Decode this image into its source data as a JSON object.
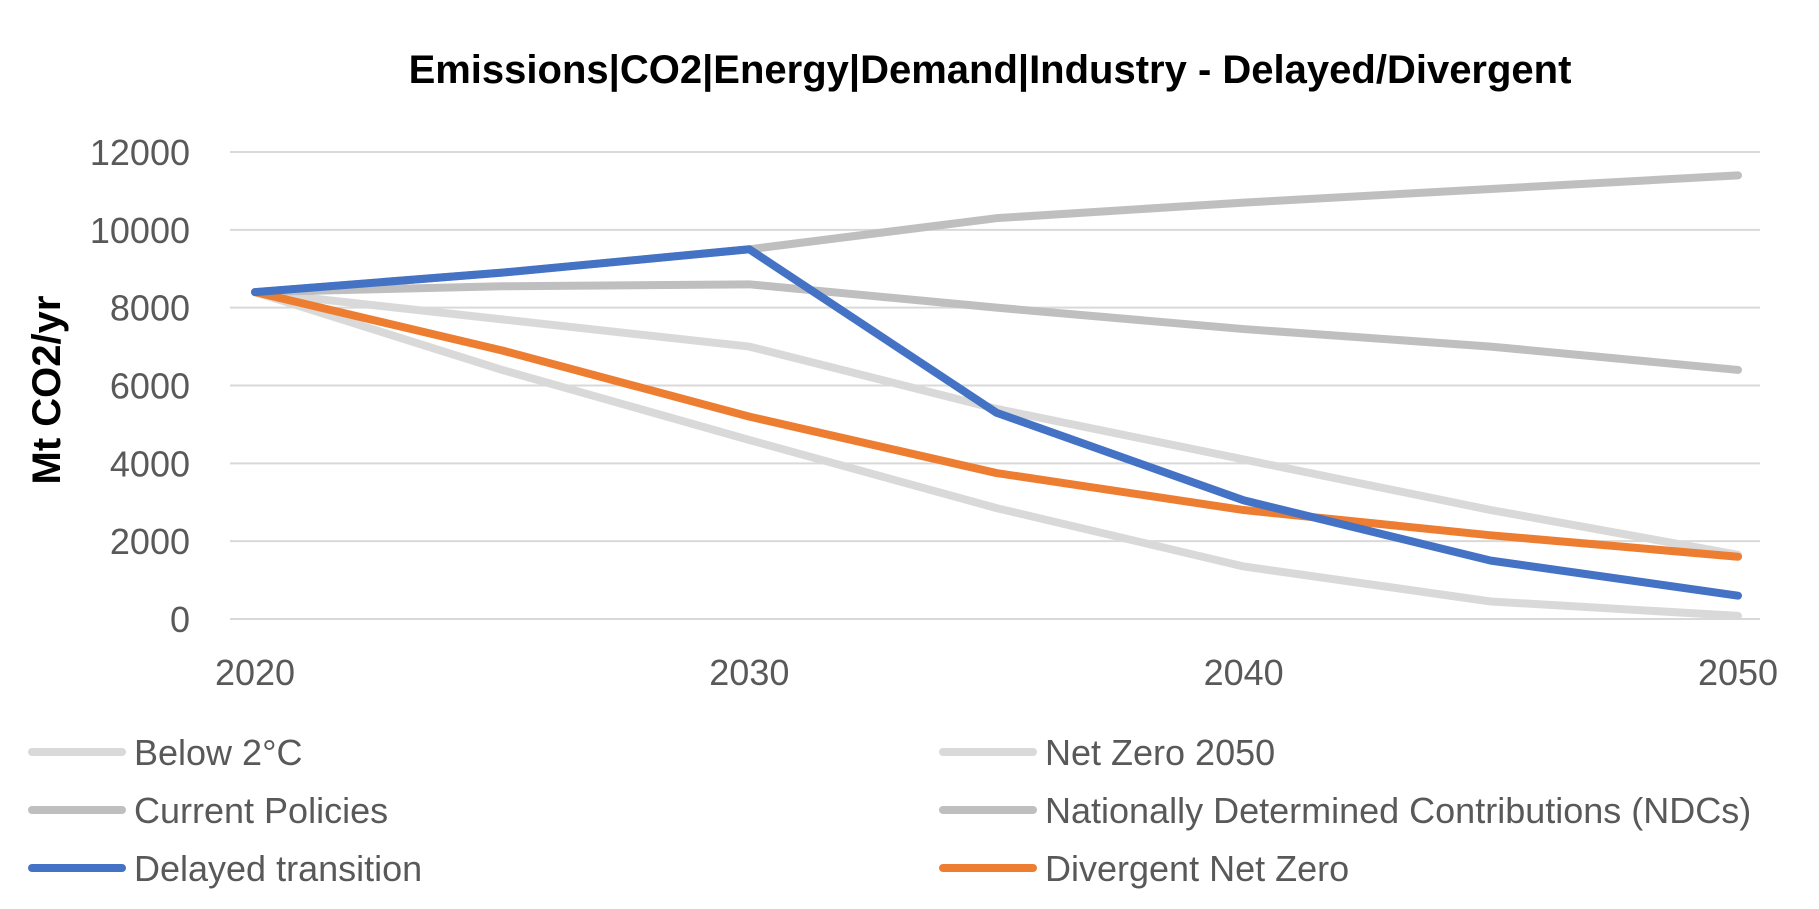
{
  "chart_data": {
    "type": "line",
    "title": "Emissions|CO2|Energy|Demand|Industry - Delayed/Divergent",
    "xlabel": "",
    "ylabel": "Mt CO2/yr",
    "x": [
      2020,
      2025,
      2030,
      2035,
      2040,
      2045,
      2050
    ],
    "x_ticks": [
      "2020",
      "2030",
      "2040",
      "2050"
    ],
    "y_ticks": [
      "0",
      "2000",
      "4000",
      "6000",
      "8000",
      "10000",
      "12000"
    ],
    "xlim": [
      2020,
      2050
    ],
    "ylim": [
      0,
      12000
    ],
    "grid": "horizontal",
    "legend_position": "bottom",
    "series": [
      {
        "name": "Below 2°C",
        "color": "#d9d9d9",
        "values": [
          8400,
          7700,
          7000,
          5400,
          4100,
          2800,
          1650
        ],
        "draw_order": 0
      },
      {
        "name": "Net Zero 2050",
        "color": "#d9d9d9",
        "values": [
          8400,
          6400,
          4600,
          2850,
          1350,
          450,
          80
        ],
        "draw_order": 1
      },
      {
        "name": "Current Policies",
        "color": "#bfbfbf",
        "values": [
          8400,
          8900,
          9500,
          10300,
          10700,
          11050,
          11400
        ],
        "draw_order": 2
      },
      {
        "name": "Nationally Determined Contributions (NDCs)",
        "color": "#bfbfbf",
        "values": [
          8400,
          8550,
          8600,
          8000,
          7450,
          7000,
          6400
        ],
        "draw_order": 3
      },
      {
        "name": "Delayed transition",
        "color": "#4472c4",
        "values": [
          8400,
          8900,
          9500,
          5300,
          3050,
          1500,
          600
        ],
        "draw_order": 5
      },
      {
        "name": "Divergent Net Zero",
        "color": "#ed7d31",
        "values": [
          8400,
          6900,
          5200,
          3750,
          2800,
          2150,
          1600
        ],
        "draw_order": 4
      }
    ]
  }
}
